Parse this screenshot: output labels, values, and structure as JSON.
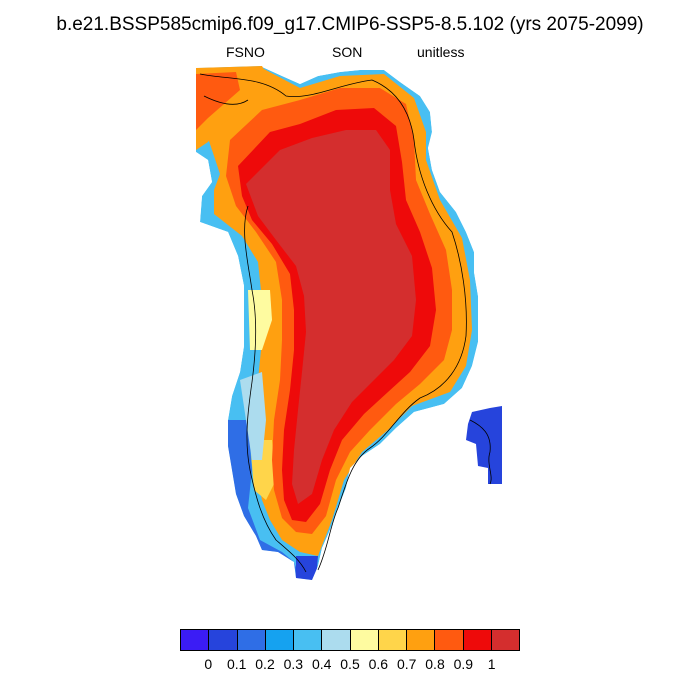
{
  "title": "b.e21.BSSP585cmip6.f09_g17.CMIP6-SSP5-8.5.102 (yrs 2075-2099)",
  "variable": "FSNO",
  "season": "SON",
  "units": "unitless",
  "colorbar": {
    "colors": [
      "#3b1cf5",
      "#2644dc",
      "#2f6ee6",
      "#15a2f0",
      "#48bff2",
      "#acdcee",
      "#fefba0",
      "#ffd54a",
      "#ffa010",
      "#ff5a10",
      "#ee0a0a",
      "#d42e2e"
    ],
    "labels": [
      "0",
      "0.1",
      "0.2",
      "0.3",
      "0.4",
      "0.5",
      "0.6",
      "0.7",
      "0.8",
      "0.9",
      "1"
    ]
  },
  "map_data": {
    "region": "Greenland",
    "field": "snow fraction, high (~1) over ice-sheet interior, decreasing toward coast; low (0–0.4) on southwest coast and eastern islands"
  }
}
